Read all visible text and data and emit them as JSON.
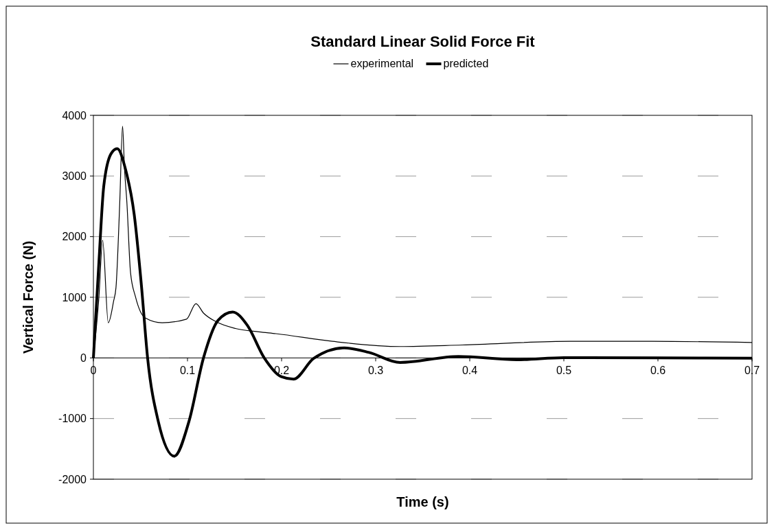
{
  "chart_data": {
    "type": "line",
    "title": "Standard Linear Solid Force Fit",
    "xlabel": "Time (s)",
    "ylabel": "Vertical Force (N)",
    "xlim": [
      0,
      0.7
    ],
    "xticks": [
      0,
      0.1,
      0.2,
      0.3,
      0.4,
      0.5,
      0.6,
      0.7
    ],
    "ylim": [
      -2000,
      4000
    ],
    "yticks": [
      -2000,
      -1000,
      0,
      1000,
      2000,
      3000,
      4000
    ],
    "grid": "y",
    "legend": "top",
    "marker": "none",
    "series": [
      {
        "name": "experimental",
        "color": "#000000",
        "x": [
          0,
          0.0059,
          0.0098,
          0.0158,
          0.0214,
          0.024,
          0.028,
          0.031,
          0.033,
          0.0356,
          0.0395,
          0.0447,
          0.055,
          0.073,
          0.099,
          0.109,
          0.117,
          0.13,
          0.151,
          0.176,
          0.194,
          0.254,
          0.326,
          0.392,
          0.507,
          0.594,
          0.7
        ],
        "values": [
          0,
          1010,
          1940,
          580,
          930,
          1160,
          2560,
          3820,
          3140,
          2560,
          1400,
          1010,
          660,
          580,
          640,
          895,
          740,
          600,
          485,
          430,
          400,
          273,
          188,
          213,
          273,
          273,
          254
        ]
      },
      {
        "name": "predicted",
        "color": "#000000",
        "x": [
          0,
          0.0059,
          0.011,
          0.0189,
          0.0253,
          0.0343,
          0.0434,
          0.051,
          0.0576,
          0.069,
          0.086,
          0.1015,
          0.117,
          0.1325,
          0.148,
          0.1635,
          0.1816,
          0.1997,
          0.2126,
          0.234,
          0.2667,
          0.293,
          0.326,
          0.388,
          0.45,
          0.5,
          0.6,
          0.7
        ],
        "values": [
          0,
          1590,
          2830,
          3370,
          3450,
          3100,
          2360,
          1200,
          0,
          -1050,
          -1620,
          -1050,
          0,
          620,
          757,
          540,
          0,
          -310,
          -350,
          -10,
          165,
          90,
          -75,
          25,
          -30,
          5,
          0,
          -5
        ]
      }
    ]
  }
}
